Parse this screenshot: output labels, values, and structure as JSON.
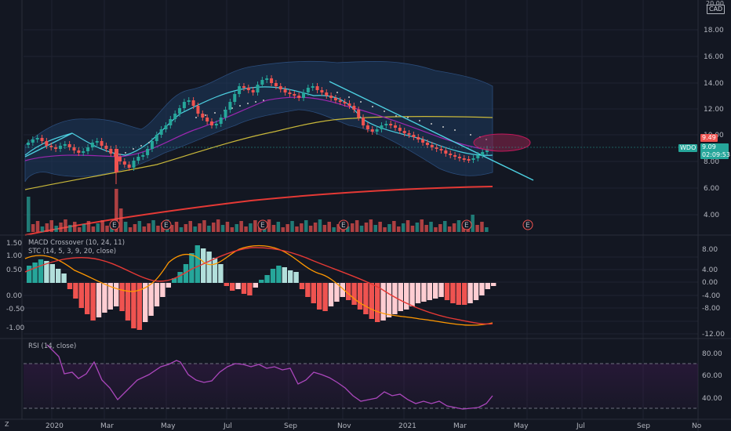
{
  "price_axis": {
    "top_label": "20.00",
    "currency": "CAD",
    "ticks": [
      "18.00",
      "16.00",
      "14.00",
      "12.00",
      "10.00",
      "8.00",
      "6.00",
      "4.00"
    ],
    "ticker": "WDO",
    "last_price": "9.09",
    "countdown": "02:09:53",
    "alert_price": "9.49"
  },
  "macd_axis": {
    "left_ticks": [
      "1.50",
      "1.00",
      "0.50",
      "0.00",
      "-0.50",
      "-1.00"
    ],
    "right_ticks": [
      "8.00",
      "4.00",
      "0.00",
      "-4.00",
      "-8.00",
      "-12.00"
    ]
  },
  "rsi_axis": {
    "ticks": [
      "80.00",
      "60.00",
      "40.00"
    ]
  },
  "indicators": {
    "macd_label": "MACD Crossover (10, 24, 11)",
    "stc_label": "STC (14, 5, 3, 9, 20, close)",
    "rsi_label": "RSI (14, close)"
  },
  "time_axis": {
    "labels": [
      "2020",
      "Mar",
      "May",
      "Jul",
      "Sep",
      "Nov",
      "2021",
      "Mar",
      "May",
      "Jul",
      "Sep",
      "No"
    ],
    "corner_z": "Z"
  },
  "earnings_marker": "E",
  "colors": {
    "background": "#131722",
    "up": "#26a69a",
    "down": "#ef5350",
    "bollinger_fill": "#1e3a5f",
    "sma_yellow": "#c9b83a",
    "sma_red": "#e53935",
    "ema_cyan": "#4dd0e1",
    "ema_purple": "#9c27b0",
    "rsi": "#ab47bc",
    "macd_signal": "#ff9800",
    "macd_line": "#e53935"
  }
}
